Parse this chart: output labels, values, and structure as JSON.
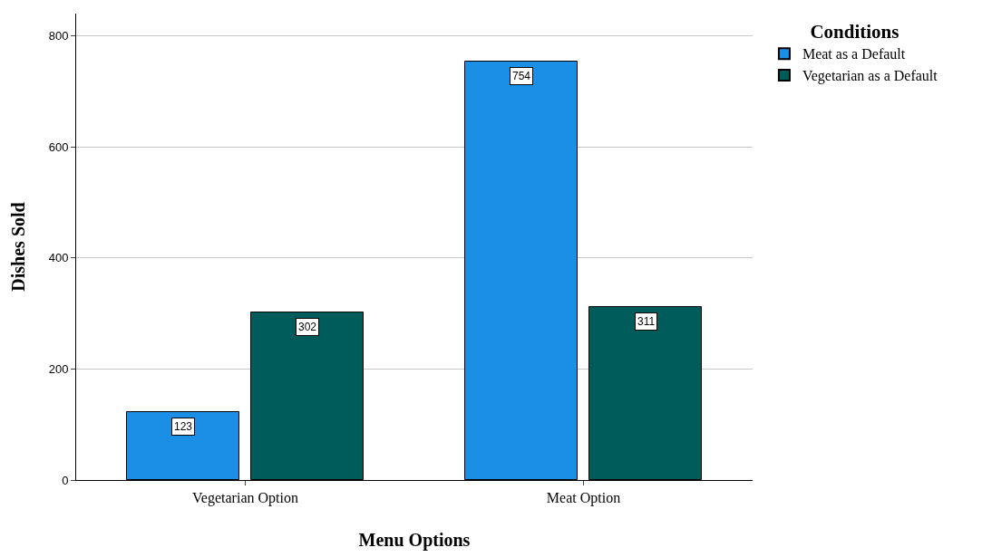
{
  "chart_data": {
    "type": "bar",
    "xlabel": "Menu Options",
    "ylabel": "Dishes Sold",
    "legend_title": "Conditions",
    "categories": [
      "Vegetarian Option",
      "Meat Option"
    ],
    "series": [
      {
        "name": "Meat as a Default",
        "color": "#1b8fe6",
        "values": [
          123,
          754
        ]
      },
      {
        "name": "Vegetarian as a Default",
        "color": "#005c5a",
        "values": [
          302,
          311
        ]
      }
    ],
    "ylim": [
      0,
      840
    ],
    "yticks": [
      0,
      200,
      400,
      600,
      800
    ],
    "grid": "y",
    "legend": "top right",
    "data_labels": true
  }
}
